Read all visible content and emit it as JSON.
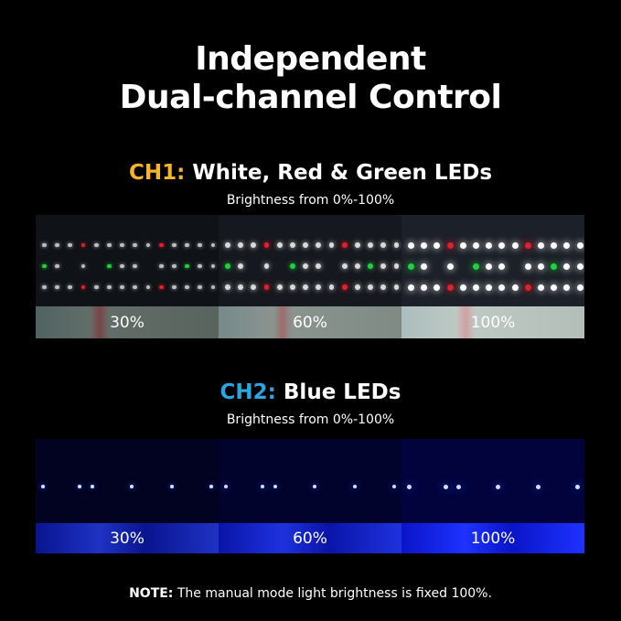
{
  "title": {
    "line1": "Independent",
    "line2": "Dual-channel Control"
  },
  "ch1": {
    "prefix": "CH1:",
    "label": "White, Red & Green LEDs",
    "subtitle": "Brightness from 0%-100%",
    "prefix_color": "#f5b42a",
    "levels": [
      "30%",
      "60%",
      "100%"
    ],
    "brightness": [
      30,
      60,
      100
    ]
  },
  "ch2": {
    "prefix": "CH2:",
    "label": "Blue LEDs",
    "subtitle": "Brightness from 0%-100%",
    "prefix_color": "#2aa6e0",
    "levels": [
      "30%",
      "60%",
      "100%"
    ],
    "brightness": [
      30,
      60,
      100
    ]
  },
  "note": {
    "label": "NOTE:",
    "text": "The manual mode light brightness is fixed 100%."
  }
}
